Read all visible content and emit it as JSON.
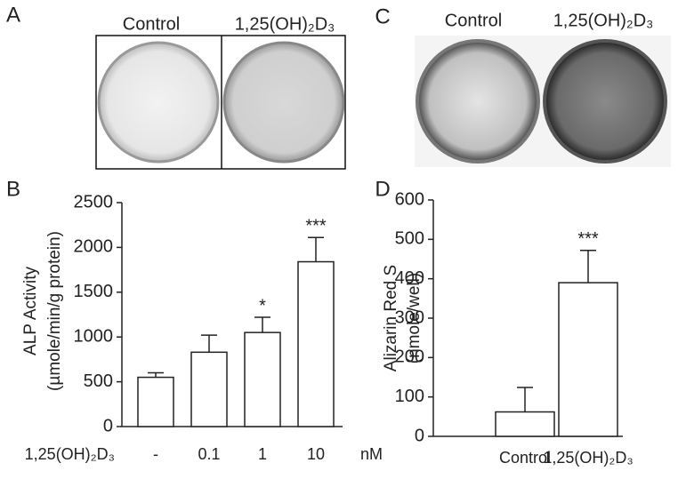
{
  "panel_labels": [
    "A",
    "B",
    "C",
    "D"
  ],
  "photos": [
    {
      "labels": [
        "Control",
        "1,25(OH)₂D₃"
      ]
    },
    {
      "labels": [
        "Control",
        "1,25(OH)₂D₃"
      ]
    }
  ],
  "chart_data": [
    {
      "type": "bar",
      "ylabel": [
        "ALP Activity",
        "(µmole/min/g protein)"
      ],
      "xlabel": "1,25(OH)₂D₃",
      "xunit": "nM",
      "categories": [
        "-",
        "0.1",
        "1",
        "10"
      ],
      "values": [
        550,
        830,
        1050,
        1840
      ],
      "errors": [
        50,
        190,
        170,
        270
      ],
      "significance": [
        null,
        null,
        "*",
        "***"
      ],
      "color": "#ffffff",
      "ylim": [
        0,
        2500
      ],
      "yticks": [
        0,
        500,
        1000,
        1500,
        2000,
        2500
      ]
    },
    {
      "type": "bar",
      "ylabel": [
        "Alizarin Red S",
        "(nmole/well)"
      ],
      "categories": [
        "Control",
        "1,25(OH)₂D₃"
      ],
      "values": [
        62,
        390
      ],
      "errors": [
        62,
        82
      ],
      "significance": [
        null,
        "***"
      ],
      "color": "#ffffff",
      "ylim": [
        0,
        600
      ],
      "yticks": [
        0,
        100,
        200,
        300,
        400,
        500,
        600
      ]
    }
  ]
}
